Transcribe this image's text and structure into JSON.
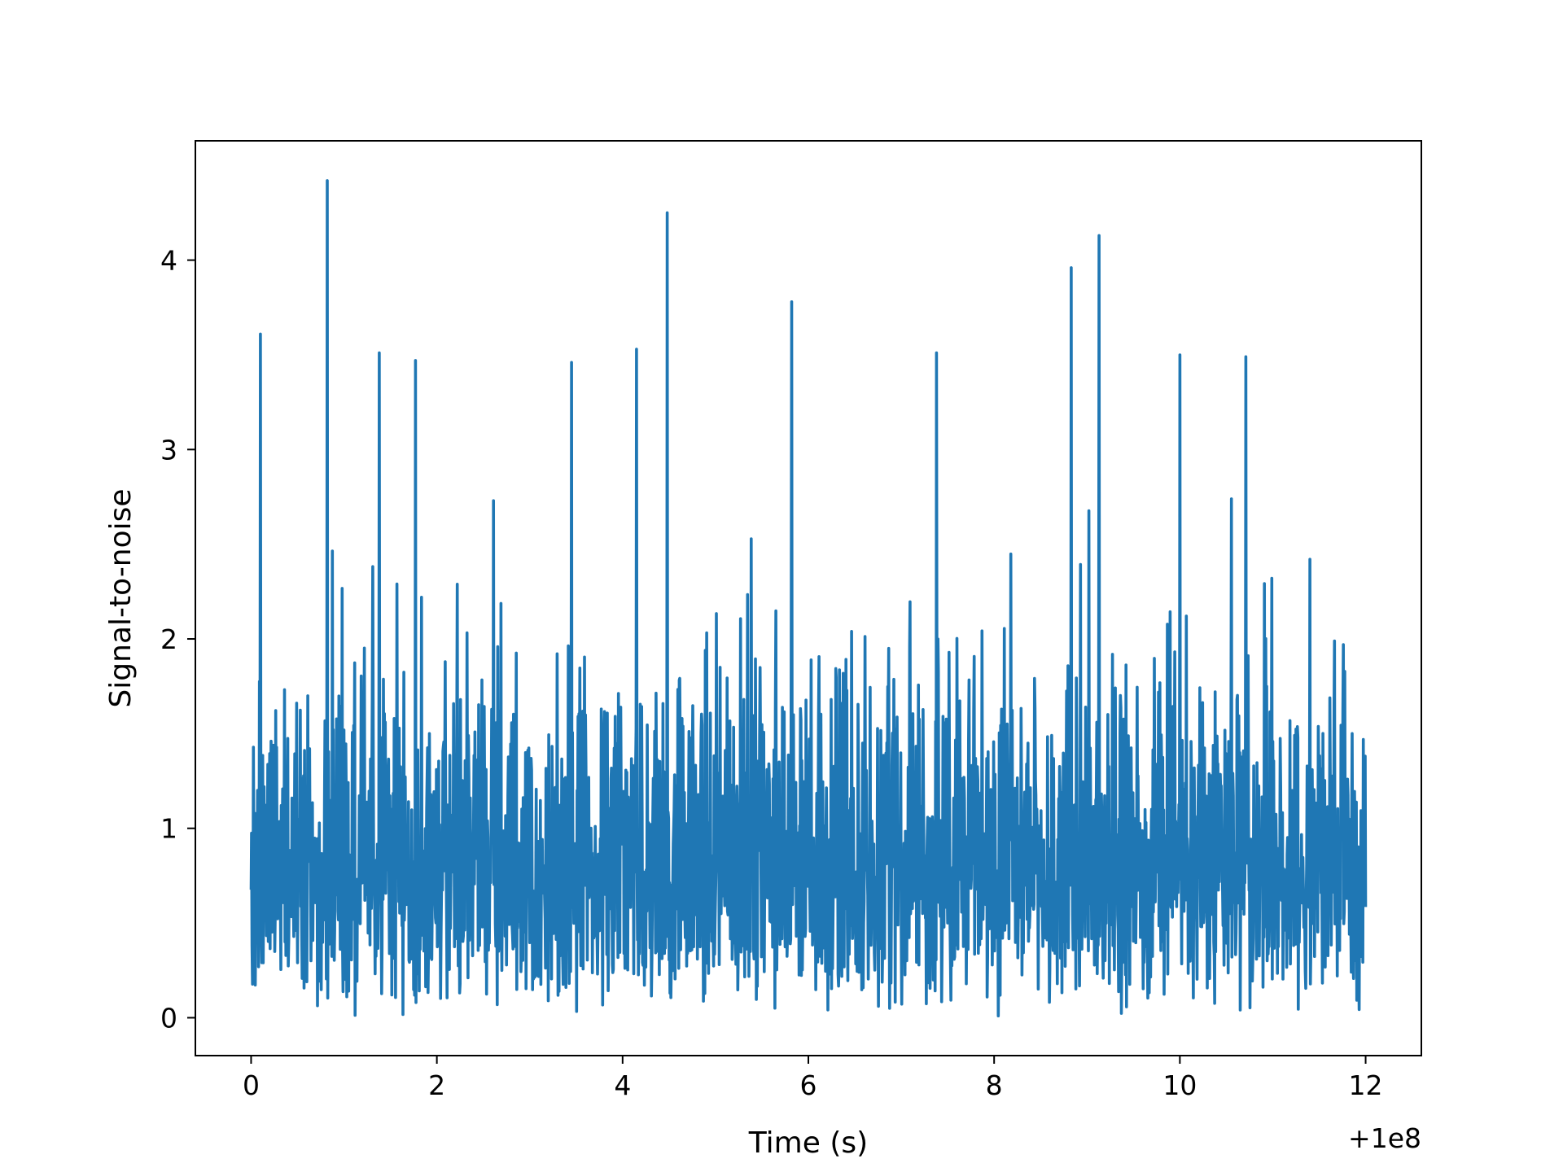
{
  "chart_data": {
    "type": "line",
    "title": "",
    "xlabel": "Time (s)",
    "ylabel": "Signal-to-noise",
    "x_offset_label": "+1e8",
    "xlim": [
      -0.6,
      12.6
    ],
    "ylim": [
      -0.2,
      4.63
    ],
    "xticks": [
      0,
      2,
      4,
      6,
      8,
      10,
      12
    ],
    "xtick_labels": [
      "0",
      "2",
      "4",
      "6",
      "8",
      "10",
      "12"
    ],
    "yticks": [
      0,
      1,
      2,
      3,
      4
    ],
    "ytick_labels": [
      "0",
      "1",
      "2",
      "3",
      "4"
    ],
    "grid": false,
    "legend": "none",
    "x_range": [
      0,
      12
    ],
    "peaks": [
      {
        "x": 0.1,
        "y": 3.61
      },
      {
        "x": 0.82,
        "y": 4.42
      },
      {
        "x": 1.38,
        "y": 3.51
      },
      {
        "x": 1.77,
        "y": 3.47
      },
      {
        "x": 3.45,
        "y": 3.46
      },
      {
        "x": 4.15,
        "y": 3.53
      },
      {
        "x": 4.48,
        "y": 4.25
      },
      {
        "x": 5.82,
        "y": 3.78
      },
      {
        "x": 7.38,
        "y": 3.51
      },
      {
        "x": 8.83,
        "y": 3.96
      },
      {
        "x": 9.13,
        "y": 4.13
      },
      {
        "x": 10.0,
        "y": 3.5
      },
      {
        "x": 10.71,
        "y": 3.49
      }
    ],
    "series": [
      {
        "color": "#1f77b4",
        "baseline_mean": 1.0,
        "noise_max": 3.3
      }
    ]
  }
}
